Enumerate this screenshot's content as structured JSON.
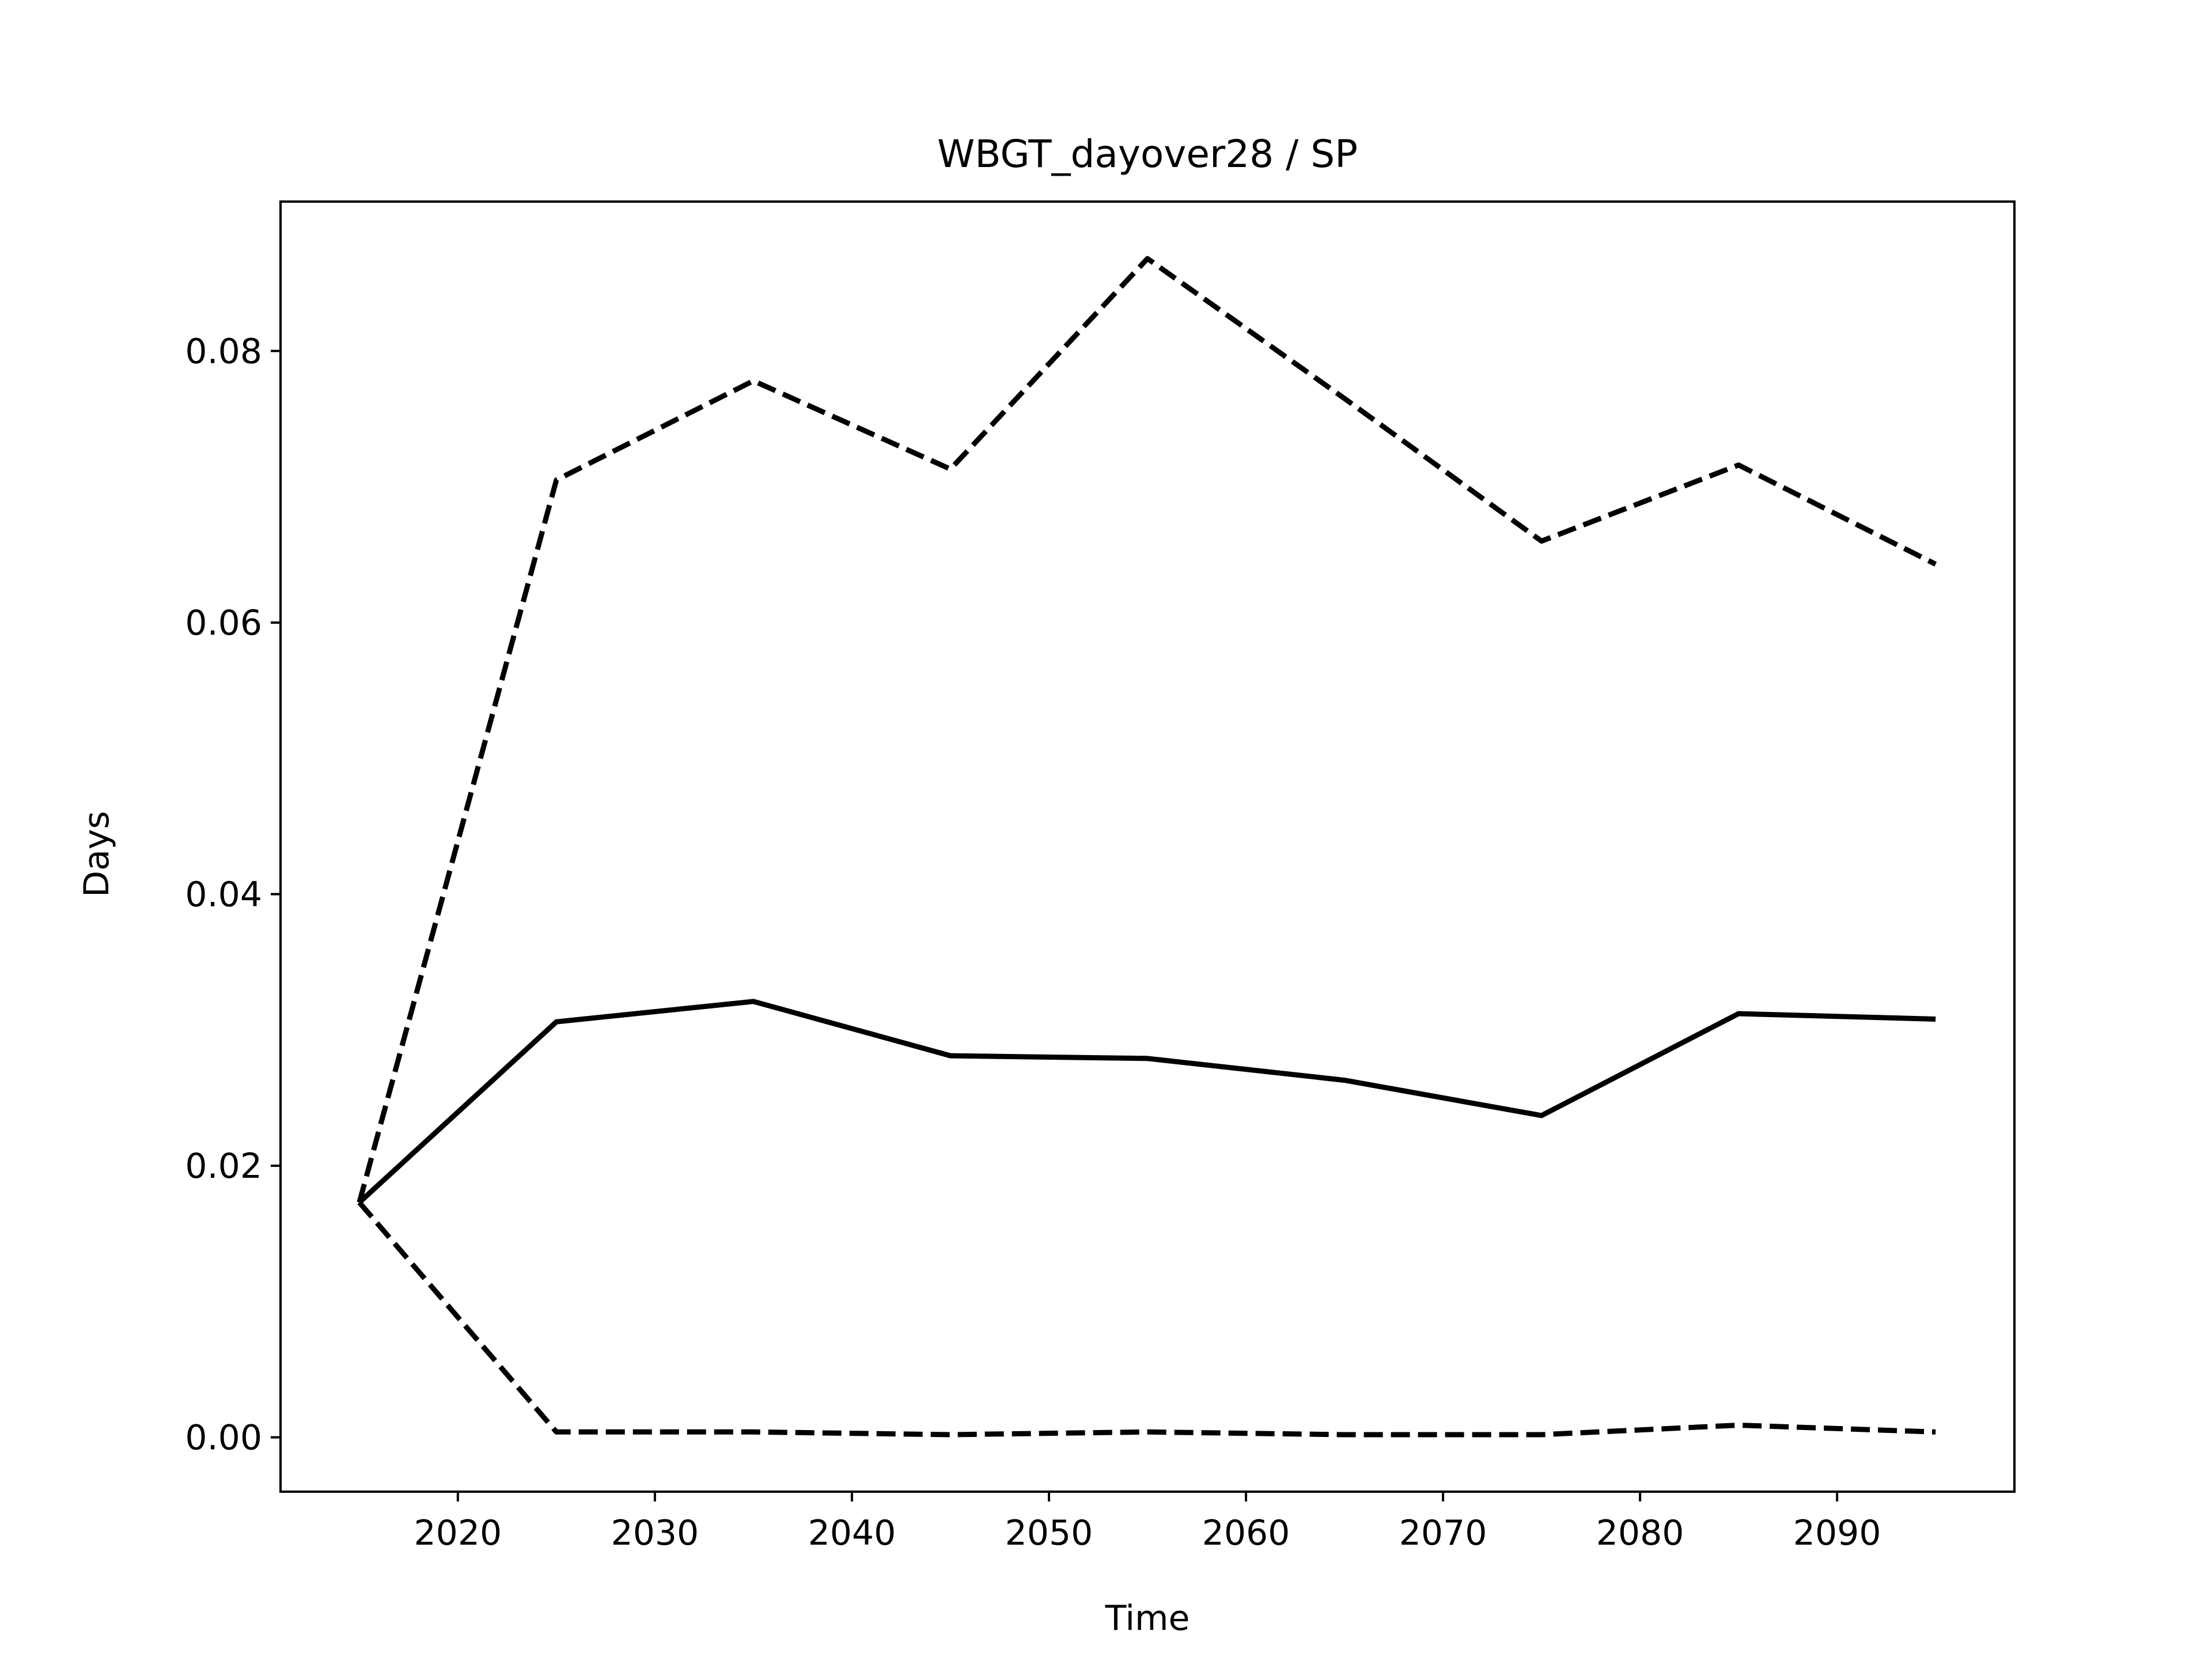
{
  "chart_data": {
    "type": "line",
    "title": "WBGT_dayover28 / SP",
    "xlabel": "Time",
    "ylabel": "Days",
    "xlim": [
      2011,
      2099
    ],
    "ylim": [
      -0.004,
      0.091
    ],
    "x_ticks": [
      2020,
      2030,
      2040,
      2050,
      2060,
      2070,
      2080,
      2090
    ],
    "y_ticks": [
      0.0,
      0.02,
      0.04,
      0.06,
      0.08
    ],
    "y_tick_labels": [
      "0.00",
      "0.02",
      "0.04",
      "0.06",
      "0.08"
    ],
    "grid": false,
    "x": [
      2015,
      2025,
      2035,
      2045,
      2055,
      2065,
      2075,
      2085,
      2095
    ],
    "series": [
      {
        "style": "solid",
        "color": "#000000",
        "values": [
          0.0173,
          0.0306,
          0.0321,
          0.0281,
          0.0279,
          0.0263,
          0.0237,
          0.0312,
          0.0308
        ]
      },
      {
        "style": "dashed",
        "color": "#000000",
        "values": [
          0.0173,
          0.0705,
          0.0778,
          0.0713,
          0.0868,
          0.0765,
          0.066,
          0.0716,
          0.0643
        ]
      },
      {
        "style": "dashed",
        "color": "#000000",
        "values": [
          0.0173,
          0.0004,
          0.0004,
          0.0002,
          0.0004,
          0.0002,
          0.0002,
          0.0009,
          0.0004
        ]
      }
    ]
  }
}
